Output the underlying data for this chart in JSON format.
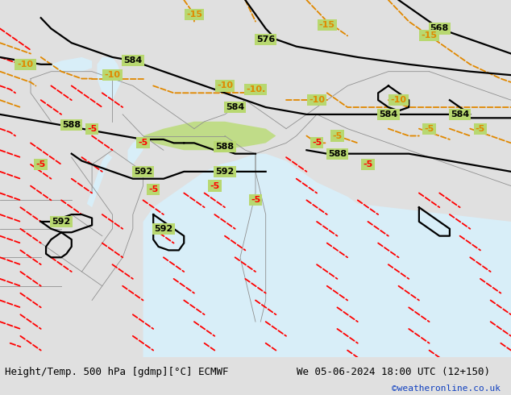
{
  "title_left": "Height/Temp. 500 hPa [gdmp][°C] ECMWF",
  "title_right": "We 05-06-2024 18:00 UTC (12+150)",
  "credit": "©weatheronline.co.uk",
  "land_color": "#aad472",
  "land_color2": "#b8dc80",
  "sea_color": "#d8eef8",
  "gray_land": "#c8c8c8",
  "bottom_bar_color": "#e0e0e0",
  "credit_color": "#1040c0",
  "figsize": [
    6.34,
    4.9
  ],
  "dpi": 100
}
